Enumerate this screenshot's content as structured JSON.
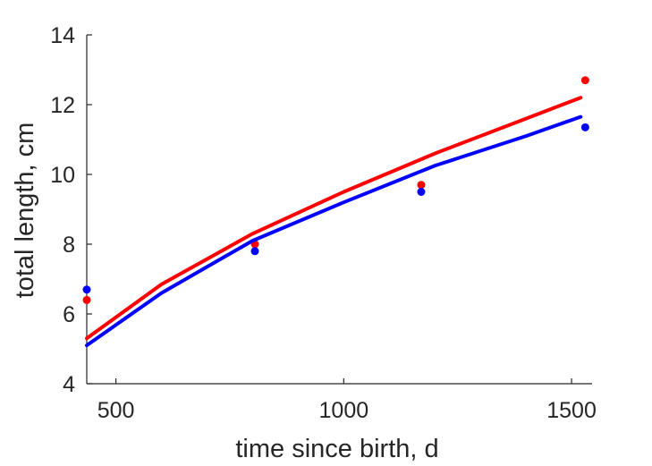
{
  "chart_data": {
    "type": "line",
    "title": "",
    "xlabel": "time since birth, d",
    "ylabel": "total length, cm",
    "xlim": [
      436,
      1545
    ],
    "ylim": [
      4,
      14
    ],
    "xticks": [
      500,
      1000,
      1500
    ],
    "yticks": [
      4,
      6,
      8,
      10,
      12,
      14
    ],
    "grid": false,
    "legend": "none",
    "series": [
      {
        "color": "#ff0000",
        "line": {
          "x": [
            436,
            600,
            800,
            1000,
            1200,
            1400,
            1520
          ],
          "y": [
            5.3,
            6.85,
            8.3,
            9.5,
            10.6,
            11.6,
            12.2
          ]
        },
        "points": {
          "x": [
            436,
            805,
            1170,
            1530
          ],
          "y": [
            6.4,
            8.0,
            9.7,
            12.7
          ]
        }
      },
      {
        "color": "#0000ff",
        "line": {
          "x": [
            436,
            600,
            800,
            1000,
            1200,
            1400,
            1520
          ],
          "y": [
            5.1,
            6.6,
            8.1,
            9.2,
            10.25,
            11.1,
            11.65
          ]
        },
        "points": {
          "x": [
            436,
            805,
            1170,
            1530
          ],
          "y": [
            6.7,
            7.8,
            9.5,
            11.35
          ]
        }
      }
    ]
  }
}
